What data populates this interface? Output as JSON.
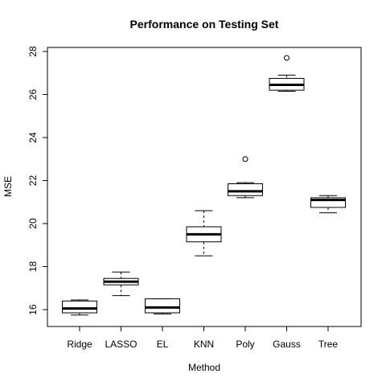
{
  "chart_data": {
    "type": "boxplot",
    "title": "Performance on Testing Set",
    "xlabel": "Method",
    "ylabel": "MSE",
    "ylim": [
      15.3,
      28.2
    ],
    "yticks": [
      16,
      18,
      20,
      22,
      24,
      26,
      28
    ],
    "grid": false,
    "categories": [
      "Ridge",
      "LASSO",
      "EL",
      "KNN",
      "Poly",
      "Gauss",
      "Tree"
    ],
    "boxes": [
      {
        "name": "Ridge",
        "whisker_low": 15.75,
        "q1": 15.85,
        "median": 16.05,
        "q3": 16.4,
        "whisker_high": 16.45,
        "outliers": []
      },
      {
        "name": "LASSO",
        "whisker_low": 16.65,
        "q1": 17.15,
        "median": 17.3,
        "q3": 17.45,
        "whisker_high": 17.75,
        "outliers": []
      },
      {
        "name": "EL",
        "whisker_low": 15.8,
        "q1": 15.85,
        "median": 16.1,
        "q3": 16.5,
        "whisker_high": 16.5,
        "outliers": []
      },
      {
        "name": "KNN",
        "whisker_low": 18.5,
        "q1": 19.15,
        "median": 19.5,
        "q3": 19.85,
        "whisker_high": 20.6,
        "outliers": []
      },
      {
        "name": "Poly",
        "whisker_low": 21.2,
        "q1": 21.3,
        "median": 21.5,
        "q3": 21.85,
        "whisker_high": 21.9,
        "outliers": [
          23.0
        ]
      },
      {
        "name": "Gauss",
        "whisker_low": 26.15,
        "q1": 26.2,
        "median": 26.45,
        "q3": 26.75,
        "whisker_high": 26.9,
        "outliers": [
          27.7
        ]
      },
      {
        "name": "Tree",
        "whisker_low": 20.5,
        "q1": 20.75,
        "median": 21.1,
        "q3": 21.2,
        "whisker_high": 21.3,
        "outliers": []
      }
    ]
  }
}
